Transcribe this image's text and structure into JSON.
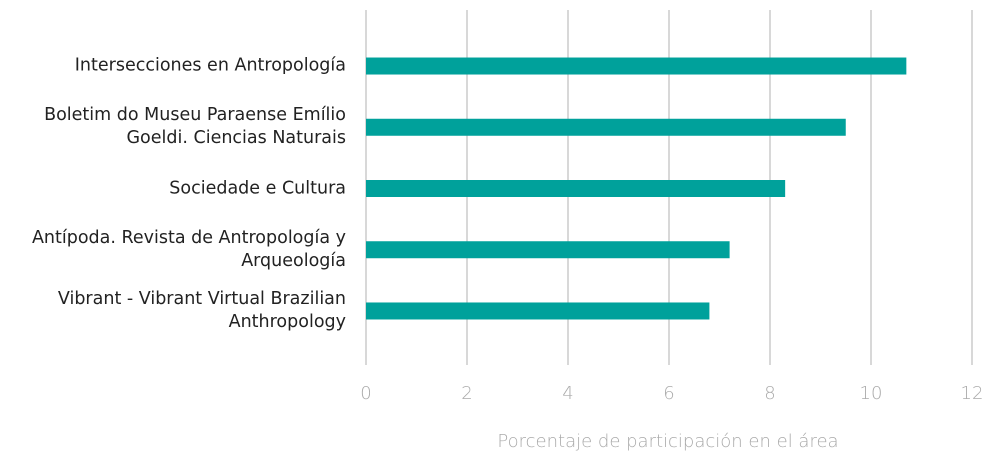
{
  "chart_data": {
    "type": "bar",
    "orientation": "horizontal",
    "categories": [
      "Intersecciones en Antropología",
      "Boletim do Museu Paraense Emílio Goeldi. Ciencias Naturais",
      "Sociedade e Cultura",
      "Antípoda. Revista de Antropología y Arqueología",
      "Vibrant - Vibrant Virtual Brazilian Anthropology"
    ],
    "values": [
      10.7,
      9.5,
      8.3,
      7.2,
      6.8
    ],
    "color": "#00a19b",
    "xlabel": "Porcentaje de participación en el área",
    "xlim": [
      0,
      12
    ],
    "xticks": [
      0,
      2,
      4,
      6,
      8,
      10,
      12
    ],
    "grid": true
  }
}
